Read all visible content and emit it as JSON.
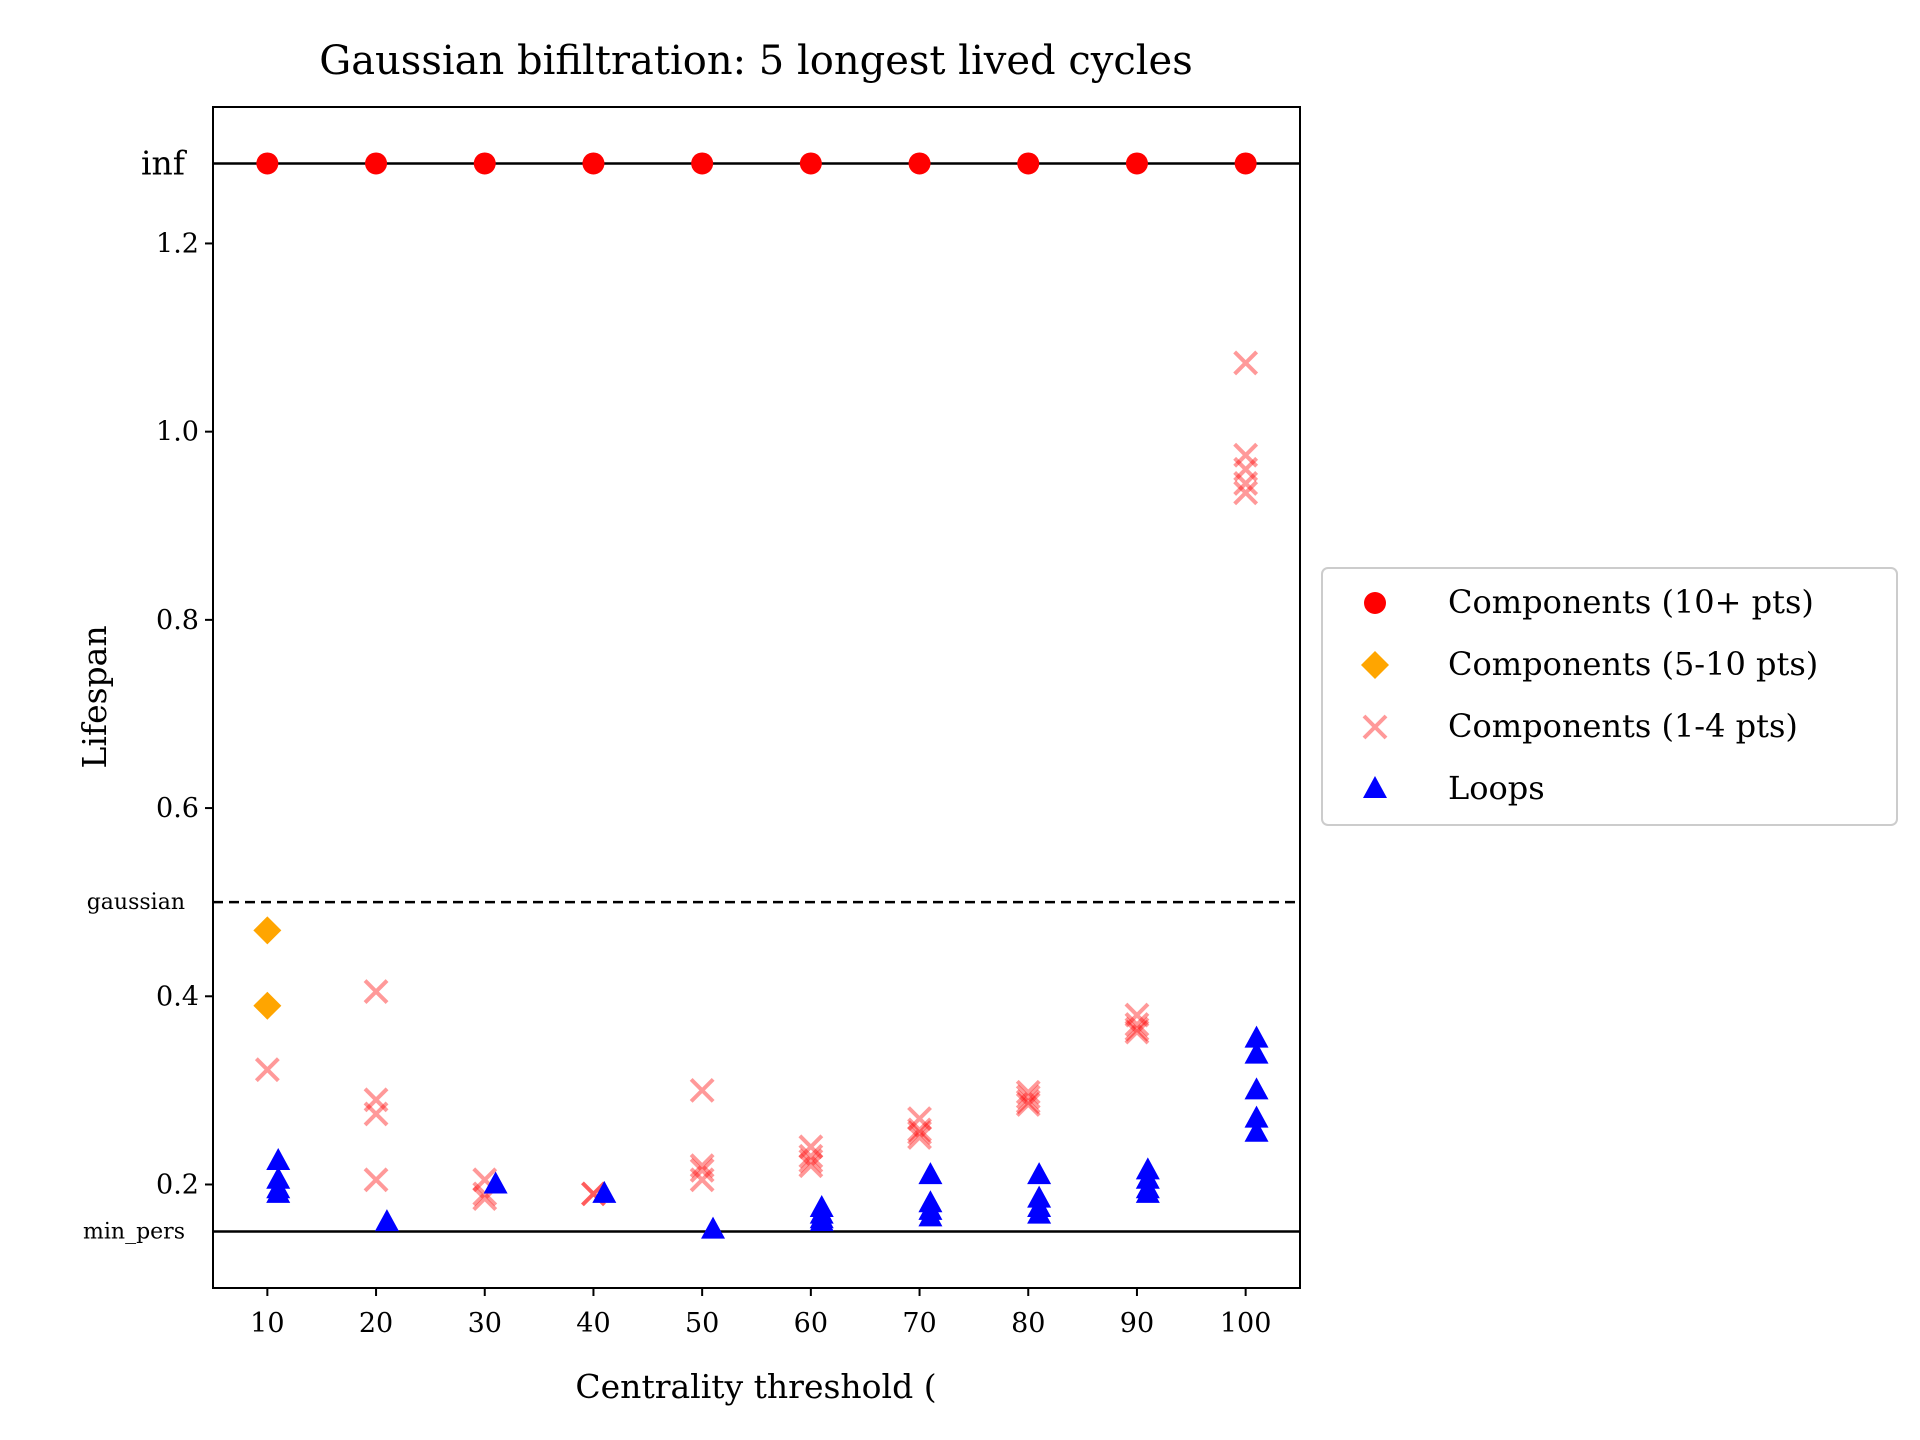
{
  "chart_data": {
    "type": "scatter",
    "title": "Gaussian bifiltration: 5 longest lived cycles",
    "xlabel": "Centrality threshold (",
    "ylabel": "Lifespan",
    "xlim": [
      5,
      105
    ],
    "ylim": [
      0.09,
      1.345
    ],
    "xticks": [
      10,
      20,
      30,
      40,
      50,
      60,
      70,
      80,
      90,
      100
    ],
    "xtick_labels": [
      "10",
      "20",
      "30",
      "40",
      "50",
      "60",
      "70",
      "80",
      "90",
      "100"
    ],
    "yticks": [
      0.2,
      0.4,
      0.6,
      0.8,
      1.0,
      1.2
    ],
    "ytick_labels": [
      "0.2",
      "0.4",
      "0.6",
      "0.8",
      "1.0",
      "1.2"
    ],
    "reference_lines": [
      {
        "name": "inf",
        "label": "inf",
        "y": 1.285,
        "style": "solid"
      },
      {
        "name": "gaussian",
        "label": "gaussian",
        "y": 0.5,
        "style": "dashed"
      },
      {
        "name": "min-pers",
        "label": "min_pers",
        "y": 0.15,
        "style": "solid"
      }
    ],
    "legend_position": "outside-right",
    "series": [
      {
        "name": "Components (10+ pts)",
        "marker": "circle",
        "color": "#ff0000",
        "alpha": 1.0,
        "points": [
          [
            10,
            1.285
          ],
          [
            20,
            1.285
          ],
          [
            30,
            1.285
          ],
          [
            40,
            1.285
          ],
          [
            50,
            1.285
          ],
          [
            60,
            1.285
          ],
          [
            70,
            1.285
          ],
          [
            80,
            1.285
          ],
          [
            90,
            1.285
          ],
          [
            100,
            1.285
          ]
        ]
      },
      {
        "name": "Components (5-10 pts)",
        "marker": "diamond",
        "color": "#ffa500",
        "alpha": 1.0,
        "points": [
          [
            10,
            0.47
          ],
          [
            10,
            0.39
          ]
        ]
      },
      {
        "name": "Components (1-4 pts)",
        "marker": "x",
        "color": "#ff0000",
        "alpha": 0.4,
        "points": [
          [
            10,
            0.322
          ],
          [
            20,
            0.405
          ],
          [
            20,
            0.29
          ],
          [
            20,
            0.275
          ],
          [
            20,
            0.205
          ],
          [
            30,
            0.205
          ],
          [
            30,
            0.19
          ],
          [
            30,
            0.185
          ],
          [
            40,
            0.19
          ],
          [
            40,
            0.19
          ],
          [
            50,
            0.3
          ],
          [
            50,
            0.22
          ],
          [
            50,
            0.215
          ],
          [
            50,
            0.205
          ],
          [
            60,
            0.24
          ],
          [
            60,
            0.23
          ],
          [
            60,
            0.225
          ],
          [
            60,
            0.22
          ],
          [
            70,
            0.27
          ],
          [
            70,
            0.258
          ],
          [
            70,
            0.255
          ],
          [
            70,
            0.25
          ],
          [
            80,
            0.298
          ],
          [
            80,
            0.293
          ],
          [
            80,
            0.288
          ],
          [
            80,
            0.285
          ],
          [
            90,
            0.38
          ],
          [
            90,
            0.37
          ],
          [
            90,
            0.365
          ],
          [
            90,
            0.362
          ],
          [
            100,
            1.073
          ],
          [
            100,
            0.975
          ],
          [
            100,
            0.96
          ],
          [
            100,
            0.945
          ],
          [
            100,
            0.935
          ]
        ]
      },
      {
        "name": "Loops",
        "marker": "triangle",
        "color": "#0000ff",
        "alpha": 1.0,
        "points": [
          [
            11,
            0.225
          ],
          [
            11,
            0.205
          ],
          [
            11,
            0.195
          ],
          [
            11,
            0.19
          ],
          [
            21,
            0.16
          ],
          [
            31,
            0.2
          ],
          [
            41,
            0.19
          ],
          [
            51,
            0.152
          ],
          [
            61,
            0.175
          ],
          [
            61,
            0.168
          ],
          [
            61,
            0.163
          ],
          [
            61,
            0.16
          ],
          [
            71,
            0.21
          ],
          [
            71,
            0.18
          ],
          [
            71,
            0.172
          ],
          [
            71,
            0.165
          ],
          [
            81,
            0.21
          ],
          [
            81,
            0.185
          ],
          [
            81,
            0.175
          ],
          [
            81,
            0.168
          ],
          [
            91,
            0.215
          ],
          [
            91,
            0.205
          ],
          [
            91,
            0.195
          ],
          [
            91,
            0.19
          ],
          [
            101,
            0.355
          ],
          [
            101,
            0.338
          ],
          [
            101,
            0.3
          ],
          [
            101,
            0.27
          ],
          [
            101,
            0.255
          ]
        ]
      }
    ]
  }
}
